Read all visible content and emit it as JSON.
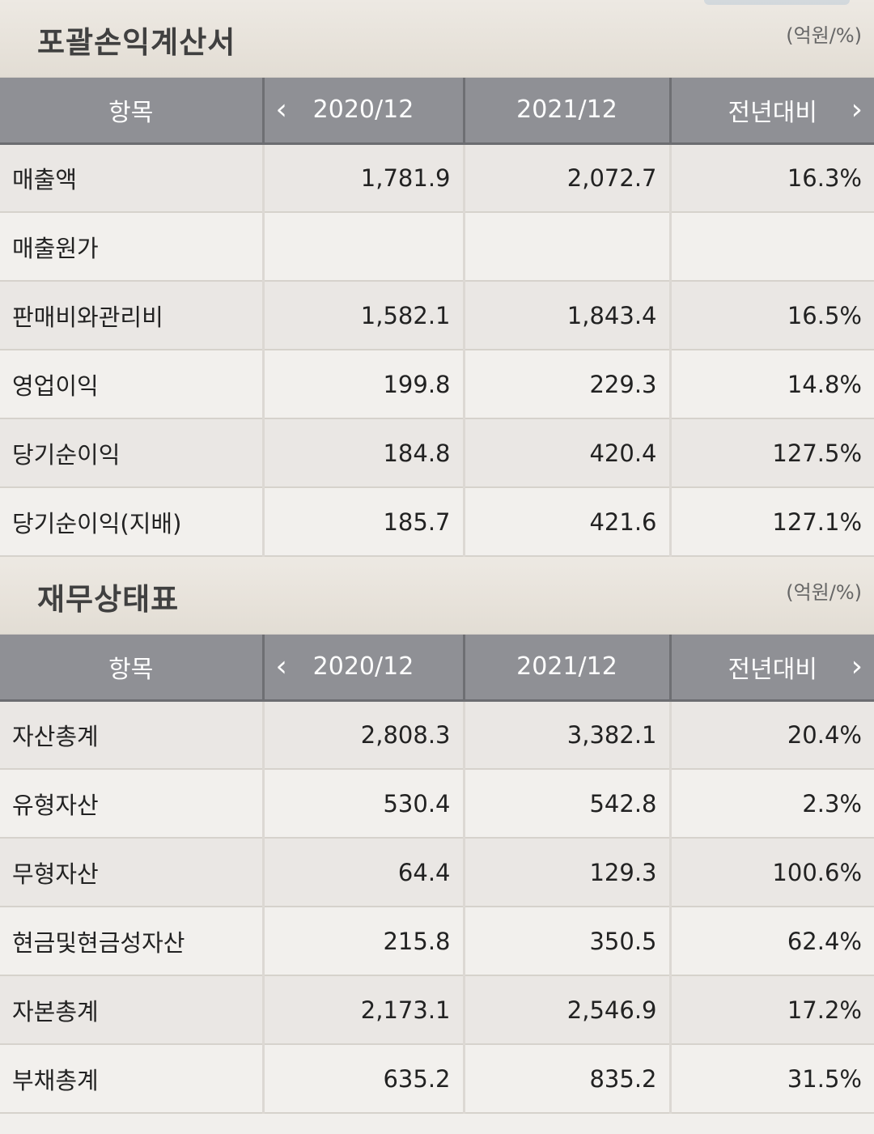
{
  "income": {
    "title": "포괄손익계산서",
    "unit": "(억원/%)",
    "headers": {
      "item": "항목",
      "col1": "2020/12",
      "col2": "2021/12",
      "col3": "전년대비"
    },
    "rows": [
      {
        "label": "매출액",
        "v1": "1,781.9",
        "v2": "2,072.7",
        "v3": "16.3%"
      },
      {
        "label": "매출원가",
        "v1": "",
        "v2": "",
        "v3": ""
      },
      {
        "label": "판매비와관리비",
        "v1": "1,582.1",
        "v2": "1,843.4",
        "v3": "16.5%"
      },
      {
        "label": "영업이익",
        "v1": "199.8",
        "v2": "229.3",
        "v3": "14.8%"
      },
      {
        "label": "당기순이익",
        "v1": "184.8",
        "v2": "420.4",
        "v3": "127.5%"
      },
      {
        "label": "당기순이익(지배)",
        "v1": "185.7",
        "v2": "421.6",
        "v3": "127.1%"
      }
    ]
  },
  "balance": {
    "title": "재무상태표",
    "unit": "(억원/%)",
    "headers": {
      "item": "항목",
      "col1": "2020/12",
      "col2": "2021/12",
      "col3": "전년대비"
    },
    "rows": [
      {
        "label": "자산총계",
        "v1": "2,808.3",
        "v2": "3,382.1",
        "v3": "20.4%"
      },
      {
        "label": "유형자산",
        "v1": "530.4",
        "v2": "542.8",
        "v3": "2.3%"
      },
      {
        "label": "무형자산",
        "v1": "64.4",
        "v2": "129.3",
        "v3": "100.6%"
      },
      {
        "label": "현금및현금성자산",
        "v1": "215.8",
        "v2": "350.5",
        "v3": "62.4%"
      },
      {
        "label": "자본총계",
        "v1": "2,173.1",
        "v2": "2,546.9",
        "v3": "17.2%"
      },
      {
        "label": "부채총계",
        "v1": "635.2",
        "v2": "835.2",
        "v3": "31.5%"
      }
    ]
  },
  "icons": {
    "prev": "chevron-left-icon",
    "next": "chevron-right-icon"
  }
}
